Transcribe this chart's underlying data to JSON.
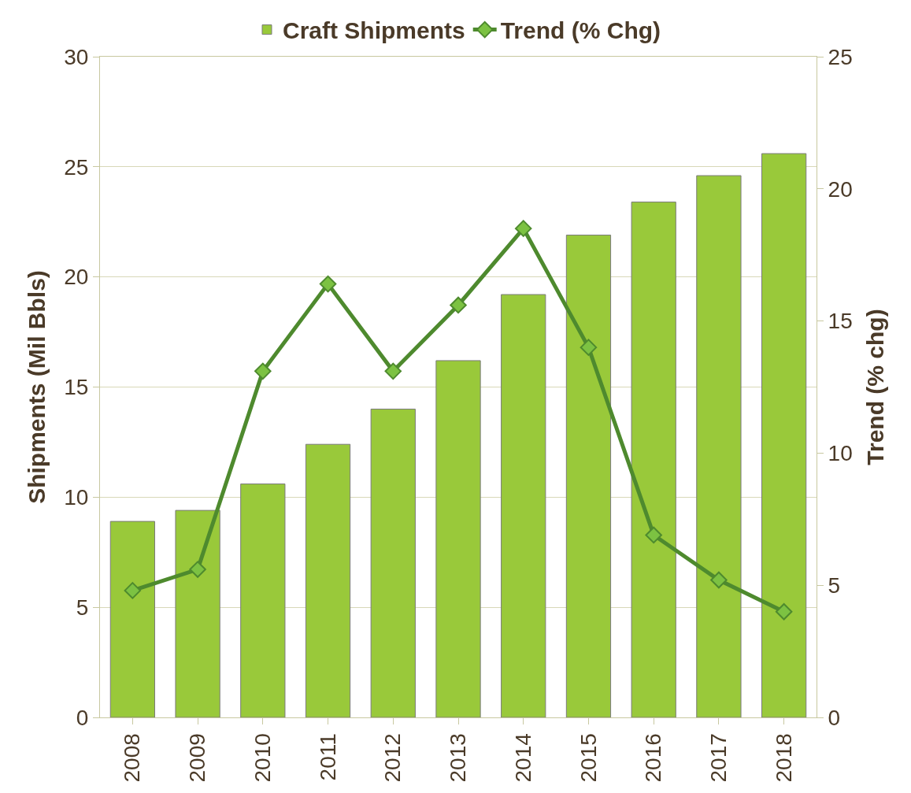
{
  "chart_data": {
    "type": "bar",
    "categories": [
      "2008",
      "2009",
      "2010",
      "2011",
      "2012",
      "2013",
      "2014",
      "2015",
      "2016",
      "2017",
      "2018"
    ],
    "series": [
      {
        "name": "Craft Shipments",
        "color": "#99c93a",
        "values": [
          8.9,
          9.4,
          10.6,
          12.4,
          14.0,
          16.2,
          19.2,
          21.9,
          23.4,
          24.6,
          25.6
        ]
      },
      {
        "name": "Trend (% Chg)",
        "type": "line",
        "axis": "y2",
        "color": "#4e8a2e",
        "marker": "diamond",
        "values": [
          4.8,
          5.6,
          13.1,
          16.4,
          13.1,
          15.6,
          18.5,
          14.0,
          6.9,
          5.2,
          4.0
        ]
      }
    ],
    "ylabel": "Shipments (Mil Bbls)",
    "y2label": "Trend (% chg)",
    "ylim": [
      0,
      30
    ],
    "yticks": [
      0,
      5,
      10,
      15,
      20,
      25,
      30
    ],
    "y2lim": [
      0,
      25
    ],
    "y2ticks": [
      0,
      5,
      10,
      15,
      20,
      25
    ],
    "grid": "y",
    "legend": "top"
  }
}
